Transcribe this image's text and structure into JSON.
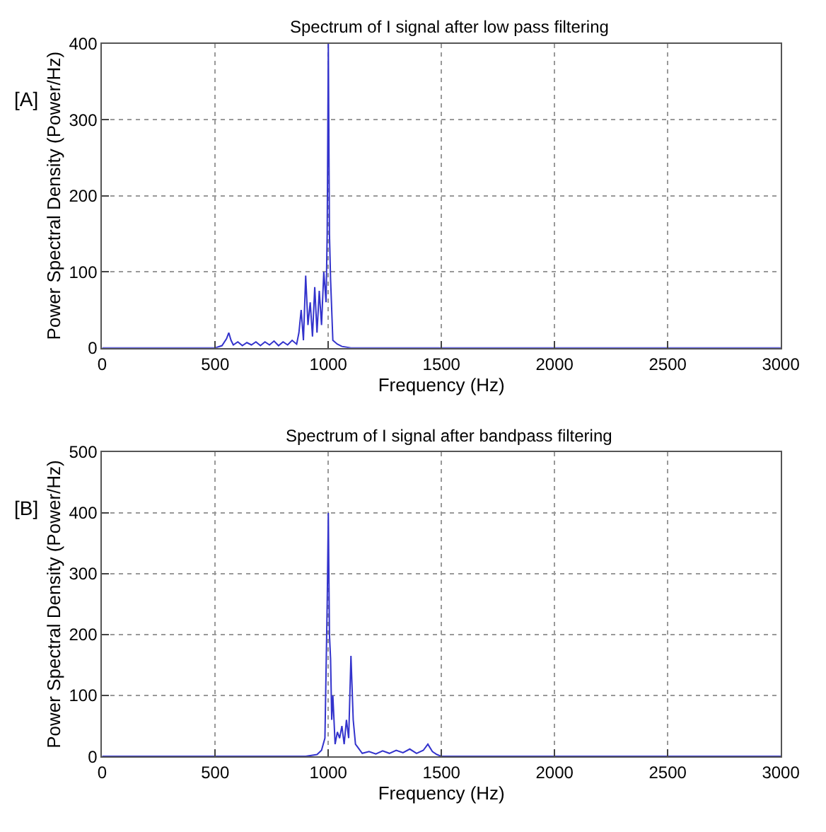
{
  "chart_data": [
    {
      "type": "line",
      "title": "Spectrum of I signal after low pass filtering",
      "xlabel": "Frequency (Hz)",
      "ylabel": "Power Spectral Density (Power/Hz)",
      "annotations": [
        "[A]"
      ],
      "series": [
        {
          "color": "#3333cc",
          "x": [
            0,
            500,
            530,
            550,
            560,
            570,
            580,
            600,
            620,
            640,
            660,
            680,
            700,
            720,
            740,
            760,
            780,
            800,
            820,
            840,
            860,
            870,
            880,
            890,
            900,
            910,
            920,
            930,
            940,
            950,
            960,
            970,
            980,
            990,
            995,
            1000,
            1005,
            1010,
            1020,
            1040,
            1060,
            1100,
            3000
          ],
          "values": [
            0,
            0,
            3,
            12,
            20,
            10,
            4,
            8,
            3,
            7,
            4,
            8,
            3,
            8,
            4,
            9,
            3,
            8,
            4,
            10,
            5,
            20,
            50,
            10,
            95,
            30,
            60,
            15,
            80,
            20,
            75,
            30,
            100,
            60,
            150,
            400,
            150,
            90,
            10,
            5,
            2,
            0,
            0
          ]
        }
      ],
      "xlim": [
        0,
        3000
      ],
      "xticks": [
        0,
        500,
        1000,
        1500,
        2000,
        2500,
        3000
      ],
      "ylim": [
        0,
        400
      ],
      "yticks": [
        0,
        100,
        200,
        300,
        400
      ],
      "grid": true
    },
    {
      "type": "line",
      "title": "Spectrum of I signal after bandpass filtering",
      "xlabel": "Frequency (Hz)",
      "ylabel": "Power Spectral Density (Power/Hz)",
      "annotations": [
        "[B]"
      ],
      "series": [
        {
          "color": "#3333cc",
          "x": [
            0,
            900,
            950,
            970,
            985,
            990,
            995,
            1000,
            1005,
            1010,
            1015,
            1020,
            1030,
            1040,
            1050,
            1060,
            1070,
            1080,
            1090,
            1100,
            1110,
            1120,
            1150,
            1180,
            1210,
            1240,
            1270,
            1300,
            1330,
            1360,
            1390,
            1420,
            1440,
            1460,
            1480,
            1500,
            3000
          ],
          "values": [
            0,
            0,
            3,
            10,
            30,
            140,
            250,
            400,
            200,
            160,
            60,
            100,
            20,
            40,
            30,
            50,
            20,
            60,
            30,
            165,
            60,
            20,
            5,
            8,
            4,
            9,
            5,
            10,
            6,
            12,
            5,
            10,
            20,
            8,
            3,
            0,
            0
          ]
        }
      ],
      "xlim": [
        0,
        3000
      ],
      "xticks": [
        0,
        500,
        1000,
        1500,
        2000,
        2500,
        3000
      ],
      "ylim": [
        0,
        500
      ],
      "yticks": [
        0,
        100,
        200,
        300,
        400,
        500
      ],
      "grid": true
    }
  ]
}
